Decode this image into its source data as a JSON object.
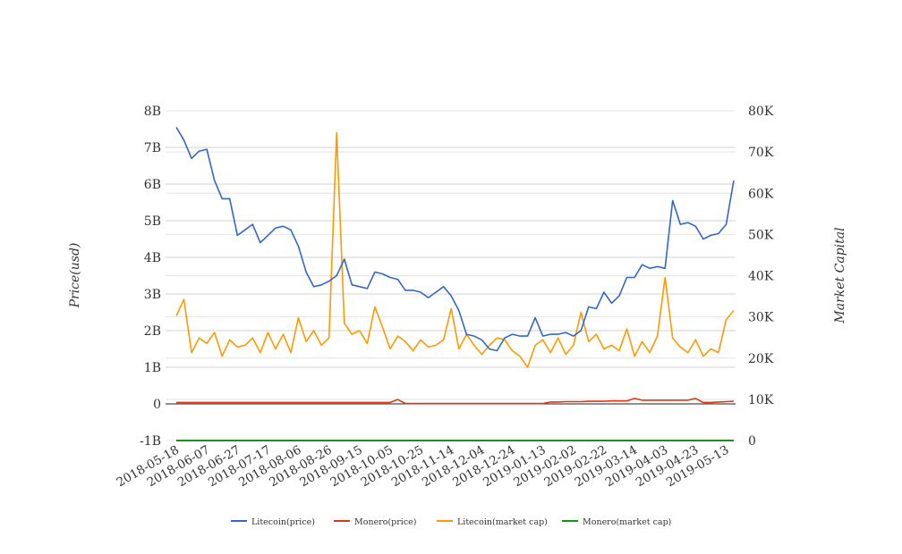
{
  "chart_data": {
    "type": "line",
    "title": "",
    "xlabel": "",
    "ylabel": "Price(usd)",
    "y2label": "Market Capital",
    "x_start": "2018-05-18",
    "x_step_days": 5,
    "x_tick_labels": [
      "2018-05-18",
      "2018-06-07",
      "2018-06-27",
      "2018-07-17",
      "2018-08-06",
      "2018-08-26",
      "2018-09-15",
      "2018-10-05",
      "2018-10-25",
      "2018-11-14",
      "2018-12-04",
      "2018-12-24",
      "2019-01-13",
      "2019-02-02",
      "2019-02-22",
      "2019-03-14",
      "2019-04-03",
      "2019-04-23",
      "2019-05-13"
    ],
    "y_ticks": [
      {
        "v": -1,
        "label": "-1B"
      },
      {
        "v": 0,
        "label": "0"
      },
      {
        "v": 1,
        "label": "1B"
      },
      {
        "v": 2,
        "label": "2B"
      },
      {
        "v": 3,
        "label": "3B"
      },
      {
        "v": 4,
        "label": "4B"
      },
      {
        "v": 5,
        "label": "5B"
      },
      {
        "v": 6,
        "label": "6B"
      },
      {
        "v": 7,
        "label": "7B"
      },
      {
        "v": 8,
        "label": "8B"
      }
    ],
    "y2_ticks": [
      {
        "v": 0,
        "label": "0"
      },
      {
        "v": 10000,
        "label": "10K"
      },
      {
        "v": 20000,
        "label": "20K"
      },
      {
        "v": 30000,
        "label": "30K"
      },
      {
        "v": 40000,
        "label": "40K"
      },
      {
        "v": 50000,
        "label": "50K"
      },
      {
        "v": 60000,
        "label": "60K"
      },
      {
        "v": 70000,
        "label": "70K"
      },
      {
        "v": 80000,
        "label": "80K"
      }
    ],
    "ylim": [
      -1,
      8
    ],
    "y2lim": [
      0,
      80000
    ],
    "grid": true,
    "legend_position": "bottom",
    "series": [
      {
        "name": "Litecoin(price)",
        "color": "#3366cc",
        "axis": "left",
        "values": [
          7.55,
          7.2,
          6.7,
          6.9,
          6.95,
          6.1,
          5.6,
          5.6,
          4.6,
          4.75,
          4.9,
          4.4,
          4.6,
          4.8,
          4.85,
          4.75,
          4.3,
          3.6,
          3.2,
          3.25,
          3.35,
          3.5,
          3.95,
          3.25,
          3.2,
          3.15,
          3.6,
          3.55,
          3.45,
          3.4,
          3.1,
          3.1,
          3.05,
          2.9,
          3.05,
          3.2,
          2.95,
          2.55,
          1.9,
          1.85,
          1.75,
          1.5,
          1.45,
          1.8,
          1.9,
          1.85,
          1.85,
          2.35,
          1.85,
          1.9,
          1.9,
          1.95,
          1.85,
          2.0,
          2.65,
          2.6,
          3.05,
          2.75,
          2.95,
          3.45,
          3.45,
          3.8,
          3.7,
          3.75,
          3.7,
          5.55,
          4.9,
          4.95,
          4.85,
          4.5,
          4.6,
          4.65,
          4.9,
          6.1
        ]
      },
      {
        "name": "Monero(price)",
        "color": "#dc3912",
        "axis": "left",
        "values": [
          0.04,
          0.04,
          0.04,
          0.04,
          0.04,
          0.04,
          0.04,
          0.04,
          0.04,
          0.04,
          0.04,
          0.04,
          0.04,
          0.04,
          0.04,
          0.04,
          0.04,
          0.04,
          0.04,
          0.04,
          0.04,
          0.04,
          0.04,
          0.04,
          0.04,
          0.04,
          0.04,
          0.04,
          0.04,
          0.12,
          0.01,
          0.01,
          0.01,
          0.01,
          0.01,
          0.01,
          0.01,
          0.01,
          0.01,
          0.01,
          0.01,
          0.01,
          0.01,
          0.01,
          0.01,
          0.01,
          0.01,
          0.01,
          0.01,
          0.05,
          0.05,
          0.06,
          0.06,
          0.06,
          0.07,
          0.07,
          0.07,
          0.08,
          0.08,
          0.08,
          0.15,
          0.1,
          0.1,
          0.1,
          0.1,
          0.1,
          0.1,
          0.1,
          0.15,
          0.04,
          0.04,
          0.05,
          0.06,
          0.07
        ]
      },
      {
        "name": "Litecoin(market cap)",
        "color": "#ff9900",
        "axis": "left",
        "values": [
          2.4,
          2.85,
          1.4,
          1.8,
          1.65,
          1.95,
          1.3,
          1.75,
          1.55,
          1.6,
          1.8,
          1.4,
          1.95,
          1.5,
          1.9,
          1.4,
          2.35,
          1.7,
          2.0,
          1.6,
          1.8,
          7.4,
          2.2,
          1.9,
          2.0,
          1.65,
          2.65,
          2.1,
          1.5,
          1.85,
          1.7,
          1.45,
          1.75,
          1.55,
          1.6,
          1.75,
          2.6,
          1.5,
          1.9,
          1.6,
          1.35,
          1.6,
          1.8,
          1.75,
          1.45,
          1.3,
          1.0,
          1.6,
          1.75,
          1.4,
          1.8,
          1.35,
          1.6,
          2.5,
          1.7,
          1.9,
          1.5,
          1.6,
          1.45,
          2.05,
          1.3,
          1.7,
          1.4,
          1.85,
          3.45,
          1.8,
          1.55,
          1.4,
          1.75,
          1.3,
          1.5,
          1.4,
          2.3,
          2.55
        ]
      },
      {
        "name": "Monero(market cap)",
        "color": "#109618",
        "axis": "right",
        "values": [
          0,
          0,
          0,
          0,
          0,
          0,
          0,
          0,
          0,
          0,
          0,
          0,
          0,
          0,
          0,
          0,
          0,
          0,
          0,
          0,
          0,
          0,
          0,
          0,
          0,
          0,
          0,
          0,
          0,
          0,
          0,
          0,
          0,
          0,
          0,
          0,
          0,
          0,
          0,
          0,
          0,
          0,
          0,
          0,
          0,
          0,
          0,
          0,
          0,
          0,
          0,
          0,
          0,
          0,
          0,
          0,
          0,
          0,
          0,
          0,
          0,
          0,
          0,
          0,
          0,
          0,
          0,
          0,
          0,
          0,
          0,
          0,
          0,
          0
        ]
      }
    ]
  }
}
